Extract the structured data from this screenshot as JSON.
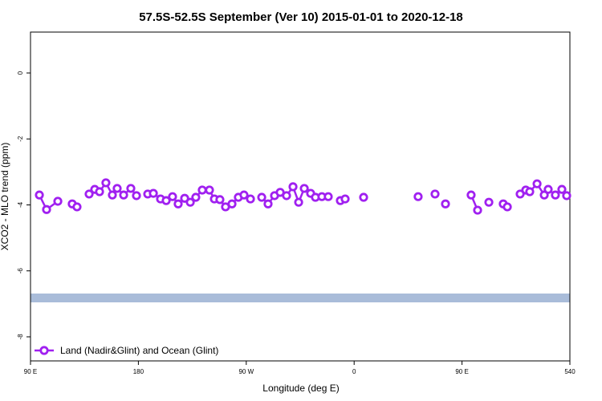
{
  "chart_data": {
    "type": "line",
    "title": "57.5S-52.5S September (Ver 10)   2015-01-01 to 2020-12-18",
    "xlabel": "Longitude (deg E)",
    "ylabel": "XCO2 - MLO trend (ppm)",
    "xlim": [
      90,
      540
    ],
    "ylim": [
      -8.73,
      1.24
    ],
    "xticks": [
      {
        "value": 90,
        "label": "90 E"
      },
      180,
      {
        "value": 270,
        "label": "90 W"
      },
      {
        "value": 360,
        "label": "0"
      },
      {
        "value": 450,
        "label": "90 E"
      },
      540
    ],
    "yticks": [
      0,
      -2,
      -4,
      -6,
      -8
    ],
    "legend": "bottom-left",
    "series": [
      {
        "name": "Land (Nadir&Glint) and Ocean (Glint)",
        "color": "#a020f0",
        "x": [
          97.4,
          103.4,
          112.8,
          118.8,
          124.8,
          128.8,
          133.9,
          138.9,
          143.6,
          147.6,
          152.9,
          158.3,
          162.3,
          167.7,
          173.7,
          178.4,
          183.1,
          187.8,
          192.5,
          198.5,
          203.2,
          208.5,
          213.2,
          218.6,
          223.3,
          227.9,
          233.3,
          239.3,
          243.4,
          248.0,
          252.7,
          258.1,
          263.4,
          268.1,
          273.5,
          278.2,
          282.9,
          288.2,
          293.6,
          298.3,
          303.6,
          309.0,
          313.7,
          318.4,
          323.7,
          327.7,
          333.1,
          338.4,
          343.5,
          348.5,
          352.5,
          360.2,
          367.9,
          390.6,
          413.4,
          420.4,
          427.5,
          431.8,
          436.2,
          446.9,
          457.6,
          463.0,
          467.7,
          472.4,
          478.4,
          484.4,
          487.8,
          493.2,
          498.5,
          503.2,
          506.5,
          512.6,
          518.6,
          521.9,
          527.9,
          533.3,
          537.3
        ],
        "values": [
          -3.7,
          -4.14,
          -3.89,
          null,
          -3.97,
          -4.06,
          null,
          -3.67,
          -3.53,
          -3.6,
          -3.33,
          -3.7,
          -3.5,
          -3.7,
          -3.5,
          -3.72,
          null,
          -3.67,
          -3.65,
          -3.82,
          -3.87,
          -3.75,
          -3.97,
          -3.8,
          -3.92,
          -3.77,
          -3.55,
          -3.55,
          -3.82,
          -3.84,
          -4.06,
          -3.97,
          -3.77,
          -3.7,
          -3.82,
          null,
          -3.77,
          -3.97,
          -3.72,
          -3.62,
          -3.72,
          -3.45,
          -3.92,
          -3.5,
          -3.65,
          -3.77,
          -3.75,
          -3.75,
          null,
          -3.87,
          -3.82,
          null,
          -3.77,
          null,
          -3.75,
          null,
          -3.67,
          null,
          -3.97,
          null,
          -3.7,
          -4.16,
          null,
          -3.92,
          null,
          -3.97,
          -4.06,
          null,
          -3.67,
          -3.55,
          -3.6,
          -3.36,
          -3.7,
          -3.53,
          -3.7,
          -3.53,
          -3.72
        ]
      }
    ]
  }
}
